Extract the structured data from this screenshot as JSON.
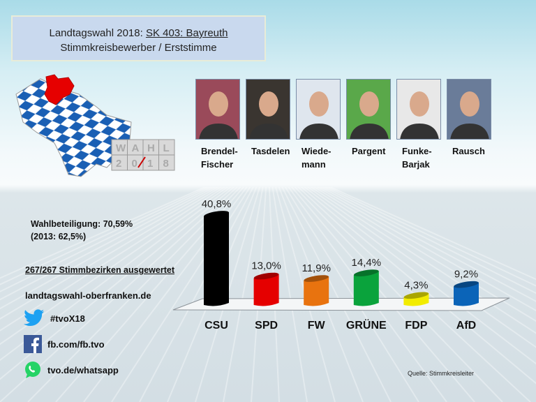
{
  "header": {
    "title_prefix": "Landtagswahl 2018: ",
    "title_link": "SK 403: Bayreuth",
    "subtitle": "Stimmkreisbewerber  / Erststimme"
  },
  "logo": {
    "row1": [
      "W",
      "A",
      "H",
      "L"
    ],
    "row2": [
      "2",
      "0",
      "1",
      "8"
    ]
  },
  "candidates": [
    {
      "line1": "Brendel-",
      "line2": "Fischer",
      "bg": "#9a4a5a"
    },
    {
      "line1": "Tasdelen",
      "line2": "",
      "bg": "#3a3530"
    },
    {
      "line1": "Wiede-",
      "line2": "mann",
      "bg": "#dfe6ee"
    },
    {
      "line1": "Pargent",
      "line2": "",
      "bg": "#5aa84a"
    },
    {
      "line1": "Funke-",
      "line2": "Barjak",
      "bg": "#e8e8e8"
    },
    {
      "line1": "Rausch",
      "line2": "",
      "bg": "#6a7c99"
    }
  ],
  "info": {
    "turnout": "Wahlbeteiligung: 70,59%",
    "turnout_prev": "(2013: 62,5%)",
    "counted": "267/267 Stimmbezirken ausgewertet",
    "website": "landtagswahl-oberfranken.de"
  },
  "social": {
    "twitter": "#tvoX18",
    "facebook": "fb.com/fb.tvo",
    "whatsapp": "tvo.de/whatsapp"
  },
  "source": "Quelle: Stimmkreisleiter",
  "chart_data": {
    "type": "bar",
    "title": "",
    "categories": [
      "CSU",
      "SPD",
      "FW",
      "GRÜNE",
      "FDP",
      "AfD"
    ],
    "values": [
      40.8,
      13.0,
      11.9,
      14.4,
      4.3,
      9.2
    ],
    "labels": [
      "40,8%",
      "13,0%",
      "11,9%",
      "14,4%",
      "4,3%",
      "9,2%"
    ],
    "colors": [
      "#000000",
      "#e50000",
      "#e8730f",
      "#0aa33c",
      "#f2ec00",
      "#0b64b8"
    ],
    "unit": "%",
    "ylim": [
      0,
      45
    ],
    "grid": false
  }
}
